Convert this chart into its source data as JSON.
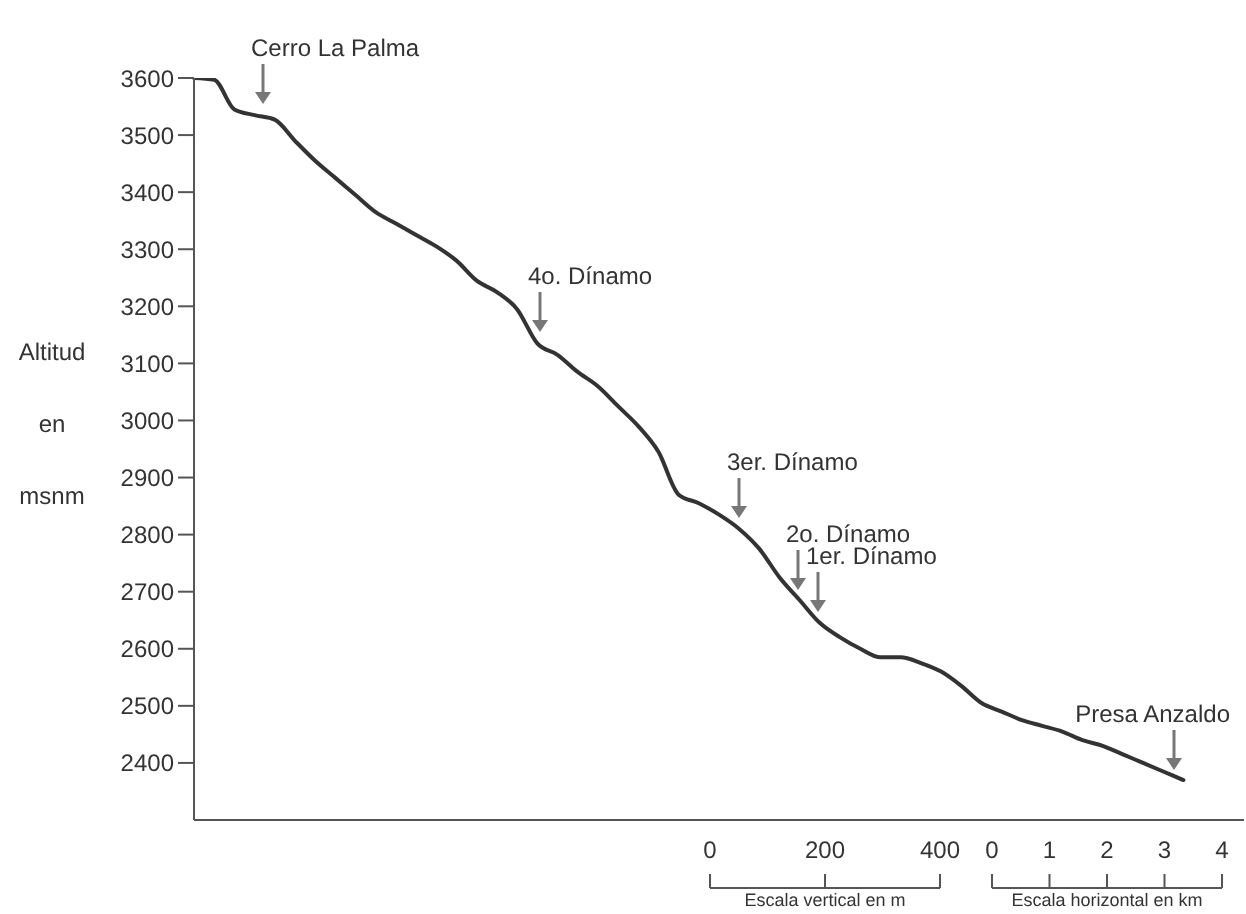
{
  "chart_data": {
    "type": "line",
    "ylabel": "Altitud en msnm",
    "categories": [
      null,
      null,
      null,
      null,
      null,
      null,
      null,
      null,
      null,
      null,
      null,
      null,
      null,
      null,
      null,
      null,
      null,
      null,
      null,
      null,
      null,
      null,
      null,
      null,
      null,
      null,
      null,
      null,
      null,
      null,
      null,
      null,
      null,
      null,
      null,
      null,
      null,
      null,
      null,
      null,
      null,
      null,
      null,
      null,
      null,
      null,
      null,
      null,
      null,
      null,
      null,
      null,
      null
    ],
    "series": [
      {
        "color": "#333333",
        "values": [
          3600,
          3597,
          3545,
          3535,
          3527,
          3490,
          3455,
          3425,
          3395,
          3365,
          3345,
          3325,
          3305,
          3280,
          3245,
          3225,
          3195,
          3135,
          3115,
          3085,
          3060,
          3025,
          2990,
          2945,
          2870,
          2855,
          2835,
          2810,
          2775,
          2725,
          2685,
          2645,
          2620,
          2600,
          2585,
          2585,
          2575,
          2560,
          2535,
          2505,
          2490,
          2475,
          2465,
          2455,
          2440,
          2430,
          2415,
          2400,
          2385,
          2370,
          null,
          null,
          null
        ]
      }
    ],
    "ylim": [
      2300,
      3600
    ],
    "yticks": [
      2400,
      2500,
      2600,
      2700,
      2800,
      2900,
      3000,
      3100,
      3200,
      3300,
      3400,
      3500,
      3600
    ],
    "grid": false,
    "legend": false,
    "tick_labels": "y",
    "marker": "none",
    "line_style": "solid",
    "annotations": [
      "Cerro La Palma",
      "4o. Dínamo",
      "3er. Dínamo",
      "2o. Dínamo",
      "1er. Dínamo",
      "Presa Anzaldo",
      "0",
      "200",
      "400",
      "Escala vertical en m",
      "0",
      "1",
      "2",
      "3",
      "4",
      "Escala horizontal en km"
    ]
  }
}
